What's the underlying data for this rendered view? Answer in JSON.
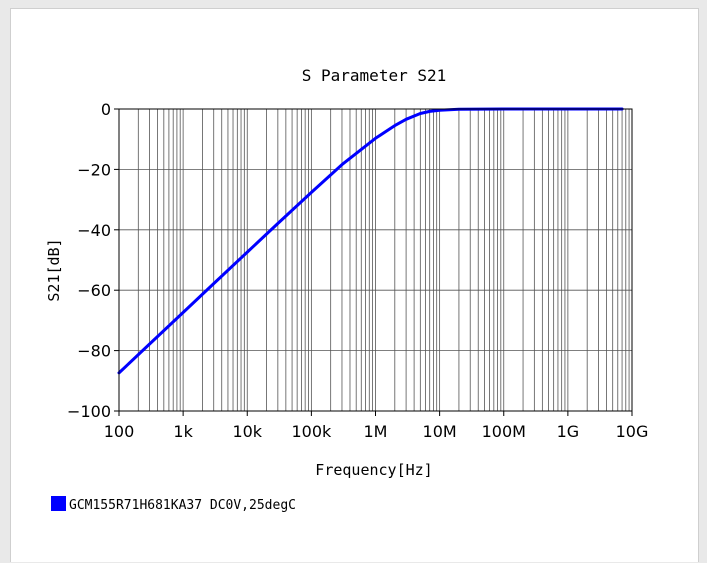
{
  "chart_data": {
    "type": "line",
    "title": "S Parameter S21",
    "xlabel": "Frequency[Hz]",
    "ylabel": "S21[dB]",
    "x_scale": "log",
    "xlim": [
      100,
      10000000000
    ],
    "ylim": [
      -100,
      0
    ],
    "x_ticks": [
      100,
      1000,
      10000,
      100000,
      1000000,
      10000000,
      100000000,
      1000000000,
      10000000000
    ],
    "x_tick_labels": [
      "100",
      "1k",
      "10k",
      "100k",
      "1M",
      "10M",
      "100M",
      "1G",
      "10G"
    ],
    "y_ticks": [
      0,
      -20,
      -40,
      -60,
      -80,
      -100
    ],
    "y_tick_labels": [
      "0",
      "−20",
      "−40",
      "−60",
      "−80",
      "−100"
    ],
    "grid": true,
    "legend_position": "bottom-left",
    "series": [
      {
        "name": "GCM155R71H681KA37 DC0V,25degC",
        "color": "#0000ff",
        "x": [
          100,
          300,
          1000,
          3000,
          10000,
          30000,
          100000,
          300000,
          1000000,
          2000000,
          3000000,
          5000000,
          7000000,
          10000000,
          20000000,
          100000000,
          1000000000,
          7000000000
        ],
        "y": [
          -87.4,
          -77.8,
          -67.4,
          -57.8,
          -47.4,
          -37.9,
          -27.6,
          -18.4,
          -9.7,
          -5.5,
          -3.4,
          -1.5,
          -0.8,
          -0.4,
          -0.1,
          0,
          0,
          0
        ]
      }
    ]
  }
}
